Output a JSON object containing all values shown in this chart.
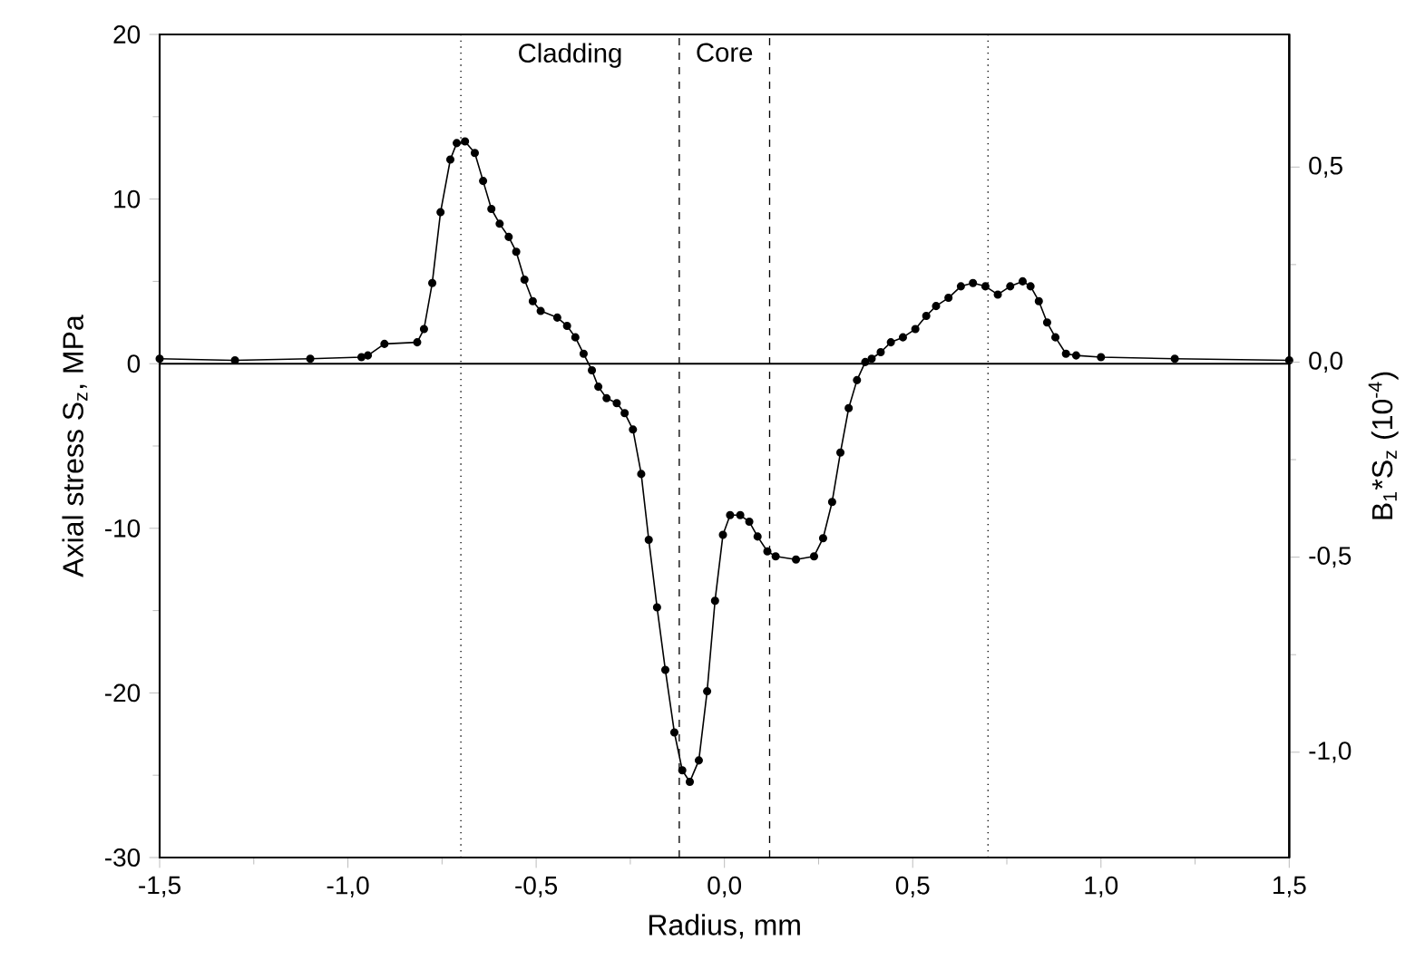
{
  "chart_data": {
    "type": "line",
    "xlabel": "Radius, mm",
    "ylabel": "Axial stress S$_{z}$, MPa",
    "y2label": "B$_{1}$*S$_{z}$ (10$^{-4}$)",
    "x": [
      -1.5,
      -1.3,
      -1.1,
      -0.964,
      -0.947,
      -0.903,
      -0.816,
      -0.798,
      -0.776,
      -0.754,
      -0.728,
      -0.711,
      -0.689,
      -0.663,
      -0.641,
      -0.619,
      -0.597,
      -0.573,
      -0.553,
      -0.531,
      -0.509,
      -0.488,
      -0.444,
      -0.418,
      -0.396,
      -0.374,
      -0.352,
      -0.335,
      -0.313,
      -0.286,
      -0.265,
      -0.243,
      -0.221,
      -0.201,
      -0.179,
      -0.157,
      -0.133,
      -0.112,
      -0.092,
      -0.068,
      -0.046,
      -0.025,
      -0.004,
      0.015,
      0.042,
      0.066,
      0.088,
      0.114,
      0.136,
      0.19,
      0.238,
      0.262,
      0.286,
      0.308,
      0.33,
      0.352,
      0.374,
      0.391,
      0.415,
      0.442,
      0.474,
      0.507,
      0.536,
      0.562,
      0.595,
      0.628,
      0.66,
      0.693,
      0.726,
      0.759,
      0.792,
      0.813,
      0.835,
      0.857,
      0.879,
      0.907,
      0.934,
      1.0,
      1.196,
      1.5
    ],
    "series": [
      {
        "color": "#000000",
        "values": [
          0.3,
          0.2,
          0.3,
          0.4,
          0.5,
          1.2,
          1.3,
          2.1,
          4.9,
          9.2,
          12.4,
          13.4,
          13.5,
          12.8,
          11.1,
          9.4,
          8.5,
          7.7,
          6.8,
          5.1,
          3.8,
          3.2,
          2.8,
          2.3,
          1.6,
          0.6,
          -0.4,
          -1.4,
          -2.1,
          -2.4,
          -3.0,
          -4.0,
          -6.7,
          -10.7,
          -14.8,
          -18.6,
          -22.4,
          -24.7,
          -25.4,
          -24.1,
          -19.9,
          -14.4,
          -10.4,
          -9.2,
          -9.2,
          -9.6,
          -10.5,
          -11.4,
          -11.7,
          -11.9,
          -11.7,
          -10.6,
          -8.4,
          -5.4,
          -2.7,
          -1.0,
          0.1,
          0.3,
          0.7,
          1.3,
          1.6,
          2.1,
          2.9,
          3.5,
          4.0,
          4.7,
          4.9,
          4.7,
          4.2,
          4.7,
          5.0,
          4.7,
          3.8,
          2.5,
          1.6,
          0.6,
          0.5,
          0.4,
          0.3,
          0.2
        ]
      }
    ],
    "xlim": [
      -1.5,
      1.5
    ],
    "ylim": [
      -30,
      20
    ],
    "y2lim": [
      -1.27,
      0.84
    ],
    "xticks": [
      {
        "value": -1.5,
        "label": "-1,5"
      },
      {
        "value": -1.0,
        "label": "-1,0"
      },
      {
        "value": -0.5,
        "label": "-0,5"
      },
      {
        "value": 0,
        "label": "0,0"
      },
      {
        "value": 0.5,
        "label": "0,5"
      },
      {
        "value": 1.0,
        "label": "1,0"
      },
      {
        "value": 1.5,
        "label": "1,5"
      }
    ],
    "yticks": [
      -30,
      -20,
      -10,
      0,
      10,
      20
    ],
    "y2ticks": [
      {
        "value": -1.0,
        "label": "-1,0"
      },
      {
        "value": -0.5,
        "label": "-0,5"
      },
      {
        "value": 0,
        "label": "0,0"
      },
      {
        "value": 0.5,
        "label": "0,5"
      }
    ],
    "ref_lines": [
      {
        "axis": "y",
        "value": 0,
        "color": "#000000",
        "line_style": "solid"
      },
      {
        "axis": "x",
        "value": -0.7,
        "color": "#000000",
        "line_style": "dotted"
      },
      {
        "axis": "x",
        "value": -0.12,
        "color": "#000000",
        "line_style": "dashed"
      },
      {
        "axis": "x",
        "value": 0.12,
        "color": "#000000",
        "line_style": "dashed"
      },
      {
        "axis": "x",
        "value": 0.7,
        "color": "#000000",
        "line_style": "dotted"
      }
    ],
    "annotations": [
      "Cladding",
      "Core"
    ],
    "marker": "circle",
    "line_style": "solid"
  }
}
